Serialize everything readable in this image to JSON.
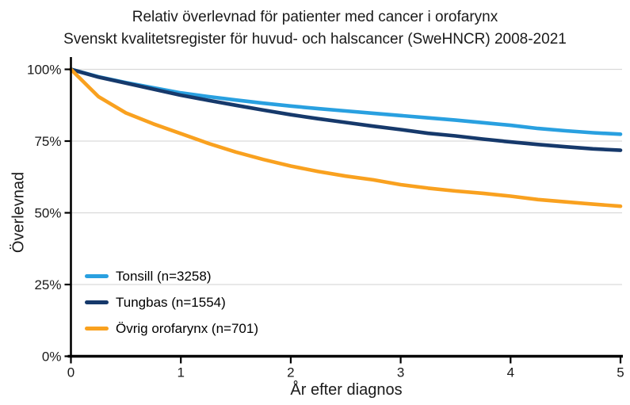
{
  "chart_data": {
    "type": "line",
    "title": "Relativ överlevnad för patienter med cancer i orofarynx",
    "subtitle": "Svenskt kvalitetsregister för huvud- och halscancer (SweHNCR) 2008-2021",
    "xlabel": "År efter diagnos",
    "ylabel": "Överlevnad",
    "xlim": [
      0,
      5
    ],
    "ylim": [
      0,
      100
    ],
    "xticks": [
      0,
      1,
      2,
      3,
      4,
      5
    ],
    "xtick_labels": [
      "0",
      "1",
      "2",
      "3",
      "4",
      "5"
    ],
    "ytick_values": [
      0,
      25,
      50,
      75,
      100
    ],
    "ytick_labels": [
      "0%",
      "25%",
      "50%",
      "75%",
      "100%"
    ],
    "grid": "horizontal-only",
    "legend_position": "inside-lower-left",
    "x": [
      0,
      0.25,
      0.5,
      0.75,
      1,
      1.25,
      1.5,
      1.75,
      2,
      2.25,
      2.5,
      2.75,
      3,
      3.25,
      3.5,
      3.75,
      4,
      4.25,
      4.5,
      4.75,
      5
    ],
    "series": [
      {
        "name": "Tonsill",
        "label": "Tonsill (n=3258)",
        "n": 3258,
        "color": "#29A0E0",
        "values": [
          100,
          97.4,
          95.4,
          93.6,
          91.8,
          90.5,
          89.3,
          88.2,
          87.2,
          86.3,
          85.5,
          84.7,
          83.9,
          83.1,
          82.3,
          81.4,
          80.5,
          79.4,
          78.6,
          77.9,
          77.4
        ]
      },
      {
        "name": "Tungbas",
        "label": "Tungbas (n=1554)",
        "n": 1554,
        "color": "#16396B",
        "values": [
          100,
          97.3,
          95.2,
          93.1,
          91.0,
          89.2,
          87.5,
          85.8,
          84.2,
          82.8,
          81.5,
          80.2,
          79.0,
          77.7,
          76.8,
          75.7,
          74.7,
          73.8,
          73.0,
          72.3,
          71.8
        ]
      },
      {
        "name": "Övrig orofarynx",
        "label": "Övrig orofarynx (n=701)",
        "n": 701,
        "color": "#F9A11F",
        "values": [
          100,
          90.5,
          84.8,
          81.0,
          77.6,
          74.2,
          71.2,
          68.6,
          66.3,
          64.4,
          62.8,
          61.5,
          59.8,
          58.6,
          57.6,
          56.8,
          55.8,
          54.6,
          53.8,
          53.0,
          52.3
        ]
      }
    ],
    "colors": {
      "axis": "#000000",
      "gridline": "#D9D9D9",
      "text": "#1A1A1A",
      "background": "#FFFFFF"
    }
  }
}
